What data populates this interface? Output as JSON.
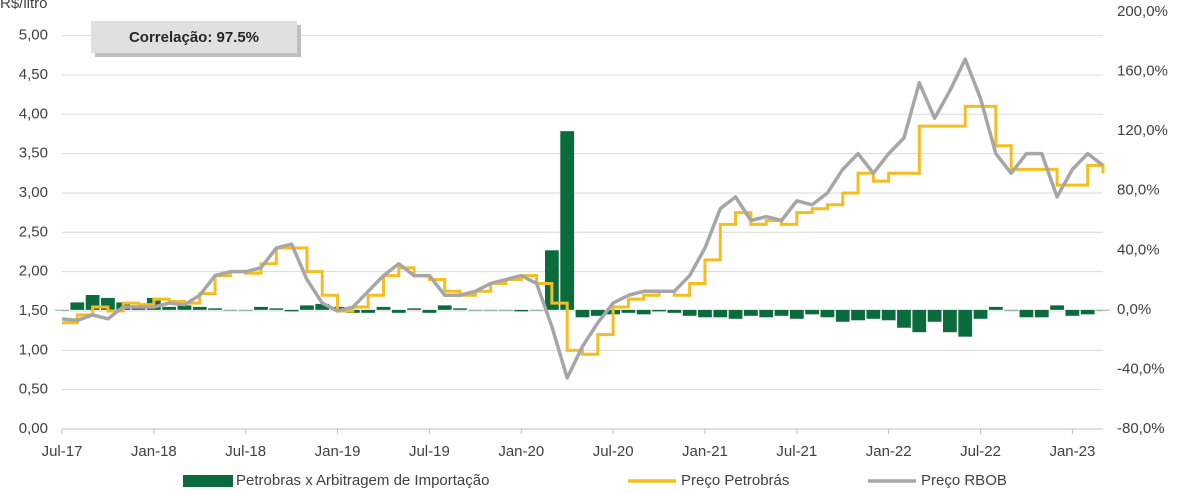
{
  "chart_data": {
    "type": "combo",
    "y_label": "R$/litro",
    "annotation": "Correlação: 97.5%",
    "x": [
      "Jul-17",
      "Aug-17",
      "Sep-17",
      "Oct-17",
      "Nov-17",
      "Dec-17",
      "Jan-18",
      "Feb-18",
      "Mar-18",
      "Apr-18",
      "May-18",
      "Jun-18",
      "Jul-18",
      "Aug-18",
      "Sep-18",
      "Oct-18",
      "Nov-18",
      "Dec-18",
      "Jan-19",
      "Feb-19",
      "Mar-19",
      "Apr-19",
      "May-19",
      "Jun-19",
      "Jul-19",
      "Aug-19",
      "Sep-19",
      "Oct-19",
      "Nov-19",
      "Dec-19",
      "Jan-20",
      "Feb-20",
      "Mar-20",
      "Apr-20",
      "May-20",
      "Jun-20",
      "Jul-20",
      "Aug-20",
      "Sep-20",
      "Oct-20",
      "Nov-20",
      "Dec-20",
      "Jan-21",
      "Feb-21",
      "Mar-21",
      "Apr-21",
      "May-21",
      "Jun-21",
      "Jul-21",
      "Aug-21",
      "Sep-21",
      "Oct-21",
      "Nov-21",
      "Dec-21",
      "Jan-22",
      "Feb-22",
      "Mar-22",
      "Apr-22",
      "May-22",
      "Jun-22",
      "Jul-22",
      "Aug-22",
      "Sep-22",
      "Oct-22",
      "Nov-22",
      "Dec-22",
      "Jan-23",
      "Feb-23",
      "Mar-23"
    ],
    "xticks": [
      "Jul-17",
      "Jan-18",
      "Jul-18",
      "Jan-19",
      "Jul-19",
      "Jan-20",
      "Jul-20",
      "Jan-21",
      "Jul-21",
      "Jan-22",
      "Jul-22",
      "Jan-23"
    ],
    "series": [
      {
        "name": "Petrobras x Arbitragem de Importação",
        "type": "area",
        "axis": "y2",
        "color": "#0a6b3c",
        "values": [
          0,
          5,
          10,
          8,
          5,
          3,
          8,
          2,
          3,
          2,
          1,
          0,
          0,
          2,
          1,
          -1,
          3,
          4,
          2,
          -2,
          -2,
          2,
          -2,
          1,
          -2,
          3,
          1,
          0,
          0,
          0,
          -1,
          0,
          40,
          120,
          -5,
          -4,
          -3,
          -2,
          -3,
          -1,
          -2,
          -4,
          -5,
          -5,
          -6,
          -4,
          -5,
          -4,
          -6,
          -3,
          -5,
          -8,
          -7,
          -6,
          -7,
          -12,
          -15,
          -8,
          -15,
          -18,
          -6,
          2,
          0,
          -5,
          -5,
          3,
          -4,
          -3,
          0
        ]
      },
      {
        "name": "Preço Petrobrás",
        "type": "step",
        "color": "#f5bd1f",
        "values": [
          1.35,
          1.45,
          1.55,
          1.5,
          1.6,
          1.58,
          1.65,
          1.62,
          1.6,
          1.72,
          1.95,
          2.0,
          1.98,
          2.1,
          2.3,
          2.3,
          2.0,
          1.7,
          1.5,
          1.55,
          1.7,
          1.95,
          2.05,
          1.95,
          1.9,
          1.75,
          1.7,
          1.75,
          1.85,
          1.9,
          1.95,
          1.85,
          1.6,
          1.0,
          0.95,
          1.2,
          1.55,
          1.65,
          1.7,
          1.75,
          1.7,
          1.85,
          2.15,
          2.6,
          2.75,
          2.6,
          2.65,
          2.6,
          2.75,
          2.8,
          2.85,
          3.0,
          3.25,
          3.15,
          3.25,
          3.25,
          3.85,
          3.85,
          3.85,
          4.1,
          4.1,
          3.6,
          3.3,
          3.3,
          3.3,
          3.1,
          3.1,
          3.35,
          3.25
        ]
      },
      {
        "name": "Preço RBOB",
        "type": "line",
        "color": "#a6a6a6",
        "values": [
          1.4,
          1.38,
          1.45,
          1.4,
          1.55,
          1.55,
          1.55,
          1.6,
          1.58,
          1.7,
          1.95,
          2.0,
          2.0,
          2.05,
          2.3,
          2.35,
          1.9,
          1.6,
          1.5,
          1.55,
          1.75,
          1.95,
          2.1,
          1.95,
          1.95,
          1.7,
          1.7,
          1.75,
          1.85,
          1.9,
          1.95,
          1.85,
          1.3,
          0.65,
          1.05,
          1.35,
          1.6,
          1.7,
          1.75,
          1.75,
          1.75,
          1.95,
          2.3,
          2.8,
          2.95,
          2.65,
          2.7,
          2.65,
          2.9,
          2.85,
          3.0,
          3.3,
          3.5,
          3.25,
          3.5,
          3.7,
          4.4,
          3.95,
          4.3,
          4.7,
          4.2,
          3.5,
          3.25,
          3.5,
          3.5,
          2.95,
          3.3,
          3.5,
          3.35
        ]
      }
    ],
    "ylim": [
      0,
      5.3
    ],
    "yticks": [
      {
        "value": 0,
        "label": "0,00"
      },
      {
        "value": 0.5,
        "label": "0,50"
      },
      {
        "value": 1,
        "label": "1,00"
      },
      {
        "value": 1.5,
        "label": "1,50"
      },
      {
        "value": 2,
        "label": "2,00"
      },
      {
        "value": 2.5,
        "label": "2,50"
      },
      {
        "value": 3,
        "label": "3,00"
      },
      {
        "value": 3.5,
        "label": "3,50"
      },
      {
        "value": 4,
        "label": "4,00"
      },
      {
        "value": 4.5,
        "label": "4,50"
      },
      {
        "value": 5,
        "label": "5,00"
      }
    ],
    "y2lim": [
      -80,
      200
    ],
    "y2ticks": [
      {
        "value": -80,
        "label": "-80,0%"
      },
      {
        "value": -40,
        "label": "-40,0%"
      },
      {
        "value": 0,
        "label": "0,0%"
      },
      {
        "value": 40,
        "label": "40,0%"
      },
      {
        "value": 80,
        "label": "80,0%"
      },
      {
        "value": 120,
        "label": "120,0%"
      },
      {
        "value": 160,
        "label": "160,0%"
      },
      {
        "value": 200,
        "label": "200,0%"
      }
    ],
    "grid": true
  }
}
